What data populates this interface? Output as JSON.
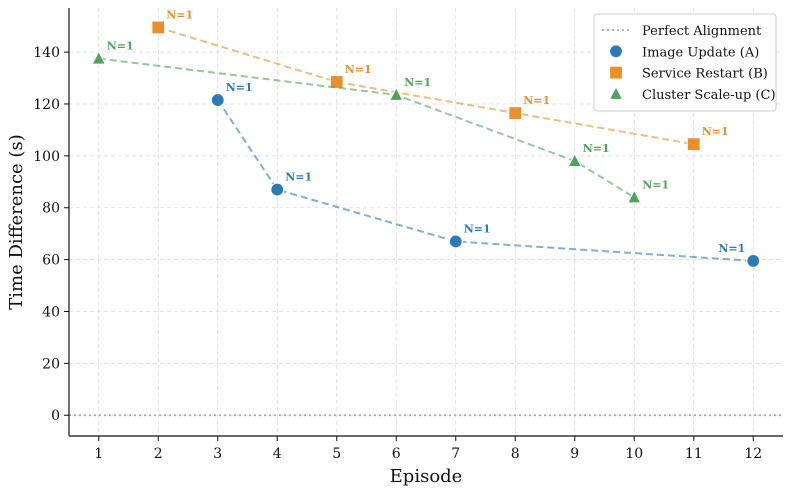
{
  "chart_data": {
    "type": "scatter",
    "title": "",
    "xlabel": "Episode",
    "ylabel": "Time Difference (s)",
    "xlim": [
      0.5,
      12.5
    ],
    "ylim": [
      -8,
      157
    ],
    "xticks": [
      "1",
      "2",
      "3",
      "4",
      "5",
      "6",
      "7",
      "8",
      "9",
      "10",
      "11",
      "12"
    ],
    "yticks": [
      "0",
      "20",
      "40",
      "60",
      "80",
      "100",
      "120",
      "140"
    ],
    "grid": true,
    "legend_position": "top-right",
    "reference_line": {
      "name": "Perfect Alignment",
      "y": 0,
      "color": "#aaaaaa"
    },
    "series": [
      {
        "name": "Image Update (A)",
        "marker": "circle",
        "color": "#2c7bb6",
        "points": [
          {
            "x": 3,
            "y": 121.5,
            "label": "N=1"
          },
          {
            "x": 4,
            "y": 87,
            "label": "N=1"
          },
          {
            "x": 7,
            "y": 67,
            "label": "N=1"
          },
          {
            "x": 12,
            "y": 59.5,
            "label": "N=1"
          }
        ]
      },
      {
        "name": "Service Restart (B)",
        "marker": "square",
        "color": "#e8912a",
        "points": [
          {
            "x": 2,
            "y": 149.5,
            "label": "N=1"
          },
          {
            "x": 5,
            "y": 128.5,
            "label": "N=1"
          },
          {
            "x": 8,
            "y": 116.5,
            "label": "N=1"
          },
          {
            "x": 11,
            "y": 104.5,
            "label": "N=1"
          }
        ]
      },
      {
        "name": "Cluster Scale-up (C)",
        "marker": "triangle",
        "color": "#4fa35a",
        "points": [
          {
            "x": 1,
            "y": 137.5,
            "label": "N=1"
          },
          {
            "x": 6,
            "y": 123.5,
            "label": "N=1"
          },
          {
            "x": 9,
            "y": 98,
            "label": "N=1"
          },
          {
            "x": 10,
            "y": 84,
            "label": "N=1"
          }
        ]
      }
    ]
  }
}
